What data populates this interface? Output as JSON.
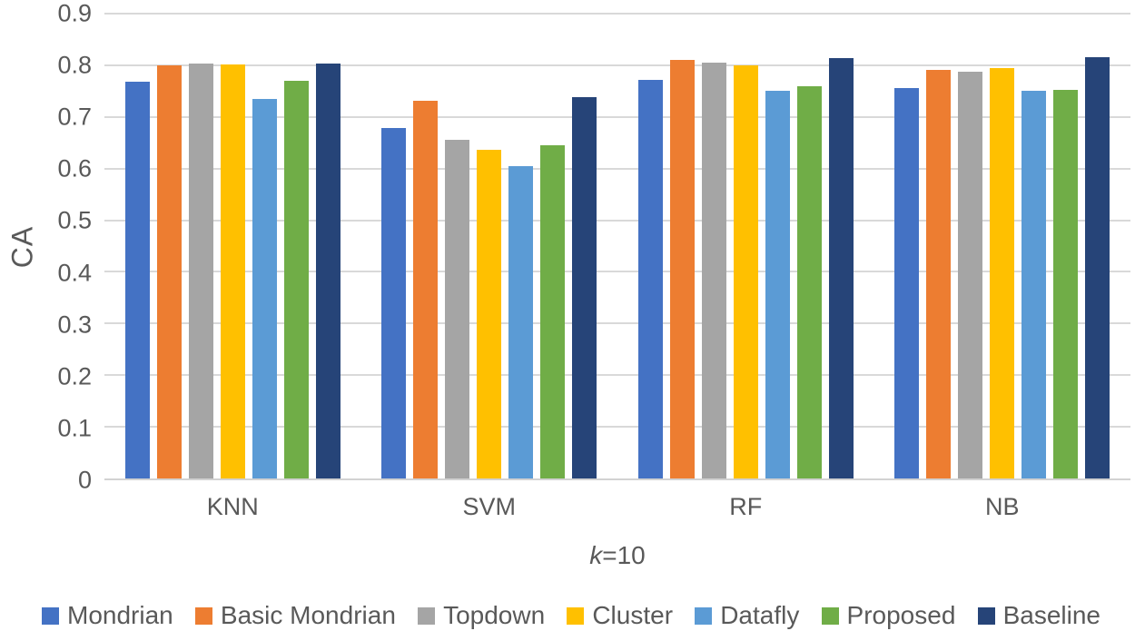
{
  "chart_data": {
    "type": "bar",
    "title": "",
    "ylabel": "CA",
    "xlabel": "k=10",
    "xlabel_italic": "k",
    "xlabel_rest": "=10",
    "ylim": [
      0,
      0.9
    ],
    "yticks": [
      "0.9",
      "0.8",
      "0.7",
      "0.6",
      "0.5",
      "0.4",
      "0.3",
      "0.2",
      "0.1",
      "0"
    ],
    "grid": true,
    "legend_position": "bottom",
    "categories": [
      "KNN",
      "SVM",
      "RF",
      "NB"
    ],
    "series": [
      {
        "name": "Mondrian",
        "color": "#4472C4",
        "values": [
          0.769,
          0.679,
          0.771,
          0.756
        ]
      },
      {
        "name": "Basic Mondrian",
        "color": "#ED7D31",
        "values": [
          0.8,
          0.731,
          0.811,
          0.791
        ]
      },
      {
        "name": "Topdown",
        "color": "#A5A5A5",
        "values": [
          0.804,
          0.655,
          0.805,
          0.787
        ]
      },
      {
        "name": "Cluster",
        "color": "#FFC000",
        "values": [
          0.801,
          0.637,
          0.8,
          0.795
        ]
      },
      {
        "name": "Datafly",
        "color": "#5B9BD5",
        "values": [
          0.735,
          0.605,
          0.751,
          0.751
        ]
      },
      {
        "name": "Proposed",
        "color": "#70AD47",
        "values": [
          0.77,
          0.646,
          0.76,
          0.753
        ]
      },
      {
        "name": "Baseline",
        "color": "#264478",
        "values": [
          0.803,
          0.738,
          0.814,
          0.816
        ]
      }
    ],
    "colors": {
      "gridline": "#D9D9D9",
      "axis_line": "#D2D2D2",
      "text": "#595959"
    }
  }
}
